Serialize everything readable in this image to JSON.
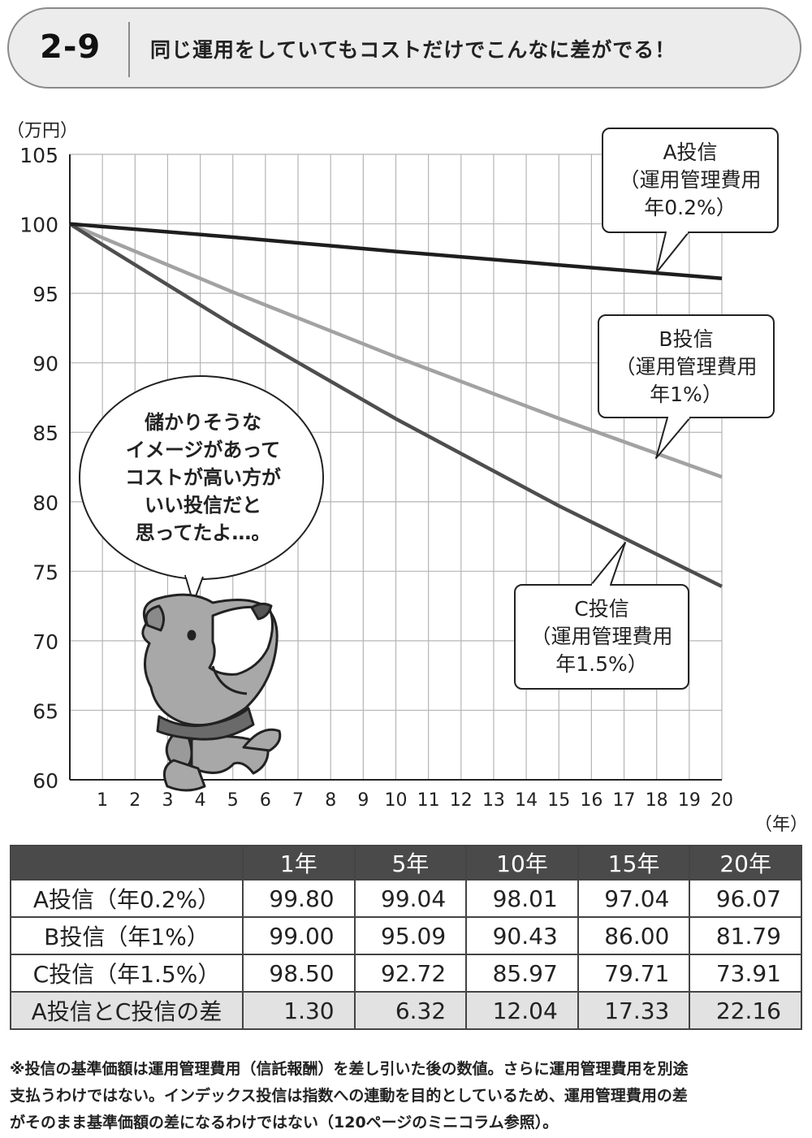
{
  "header": {
    "number": "2-9",
    "title": "同じ運用をしていてもコストだけでこんなに差がでる！"
  },
  "chart_data": {
    "type": "line",
    "ylabel": "（万円）",
    "xlabel": "（年）",
    "ylim": [
      60,
      105
    ],
    "xlim": [
      0,
      20
    ],
    "yticks": [
      60,
      65,
      70,
      75,
      80,
      85,
      90,
      95,
      100,
      105
    ],
    "xticks": [
      1,
      2,
      3,
      4,
      5,
      6,
      7,
      8,
      9,
      10,
      11,
      12,
      13,
      14,
      15,
      16,
      17,
      18,
      19,
      20
    ],
    "grid": true,
    "x": [
      0,
      1,
      5,
      10,
      15,
      20
    ],
    "series": [
      {
        "id": "A",
        "values": [
          100,
          99.8,
          99.04,
          98.01,
          97.04,
          96.07
        ],
        "color": "#1e1e1e",
        "callout": [
          "A投信",
          "（運用管理費用",
          "年0.2%）"
        ]
      },
      {
        "id": "B",
        "values": [
          100,
          99.0,
          95.09,
          90.43,
          86.0,
          81.79
        ],
        "color": "#a2a2a2",
        "callout": [
          "B投信",
          "（運用管理費用",
          "年1%）"
        ]
      },
      {
        "id": "C",
        "values": [
          100,
          98.5,
          92.72,
          85.97,
          79.71,
          73.91
        ],
        "color": "#4e4e4e",
        "callout": [
          "C投信",
          "（運用管理費用",
          "年1.5%）"
        ]
      }
    ],
    "speech_bubble": [
      "儲かりそうな",
      "イメージがあって",
      "コストが高い方が",
      "いい投信だと",
      "思ってたよ…。"
    ]
  },
  "table": {
    "headers": [
      "",
      "1年",
      "5年",
      "10年",
      "15年",
      "20年"
    ],
    "rows": [
      {
        "label": "A投信（年0.2%）",
        "values": [
          "99.80",
          "99.04",
          "98.01",
          "97.04",
          "96.07"
        ]
      },
      {
        "label": "B投信（年1%）",
        "values": [
          "99.00",
          "95.09",
          "90.43",
          "86.00",
          "81.79"
        ]
      },
      {
        "label": "C投信（年1.5%）",
        "values": [
          "98.50",
          "92.72",
          "85.97",
          "79.71",
          "73.91"
        ]
      },
      {
        "label": "A投信とC投信の差",
        "values": [
          "1.30",
          "6.32",
          "12.04",
          "17.33",
          "22.16"
        ]
      }
    ]
  },
  "footnote": [
    "※投信の基準価額は運用管理費用（信託報酬）を差し引いた後の数値。さらに運用管理費用を別途",
    "支払うわけではない。インデックス投信は指数への連動を目的としているため、運用管理費用の差",
    "がそのまま基準価額の差になるわけではない（120ページのミニコラム参照）。"
  ]
}
